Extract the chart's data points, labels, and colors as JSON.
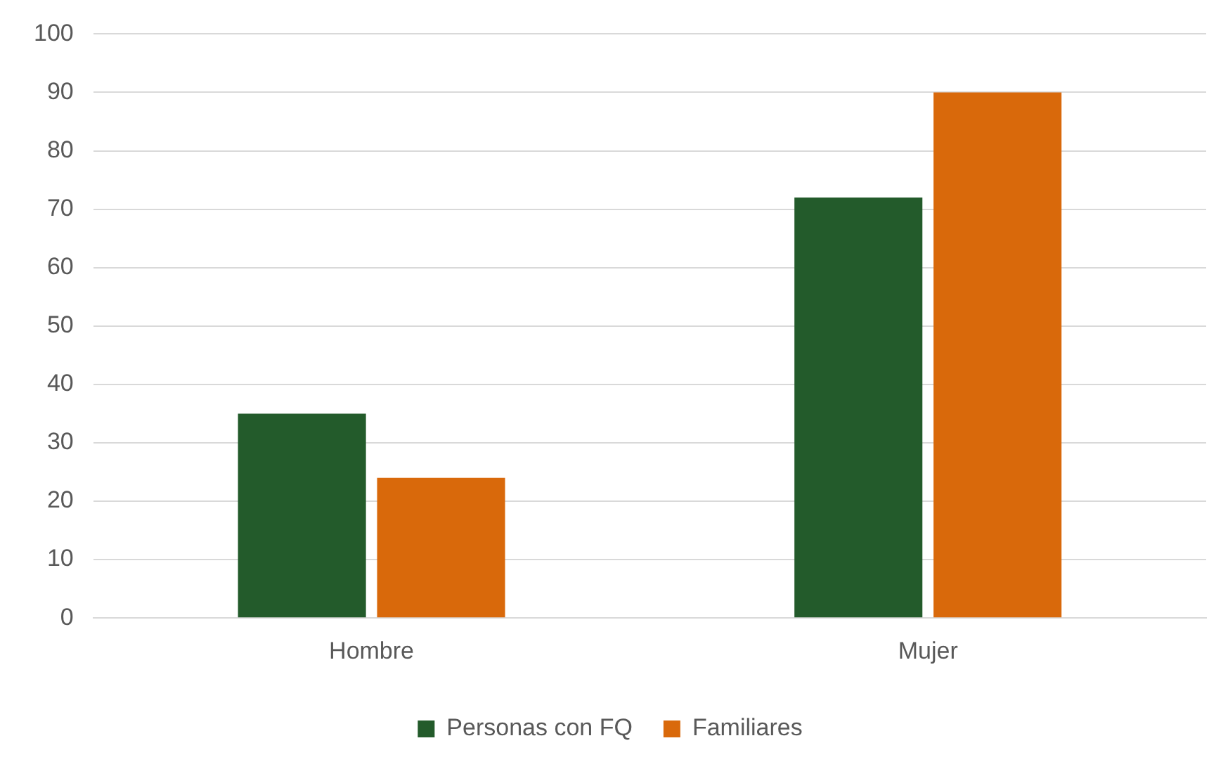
{
  "chart_data": {
    "type": "bar",
    "categories": [
      "Hombre",
      "Mujer"
    ],
    "series": [
      {
        "name": "Personas con FQ",
        "color": "#235b2b",
        "values": [
          35,
          72
        ]
      },
      {
        "name": "Familiares",
        "color": "#d9690b",
        "values": [
          24,
          90
        ]
      }
    ],
    "ylim": [
      0,
      100
    ],
    "yticks": [
      0,
      10,
      20,
      30,
      40,
      50,
      60,
      70,
      80,
      90,
      100
    ],
    "grid": "y",
    "legend": "bottom"
  }
}
